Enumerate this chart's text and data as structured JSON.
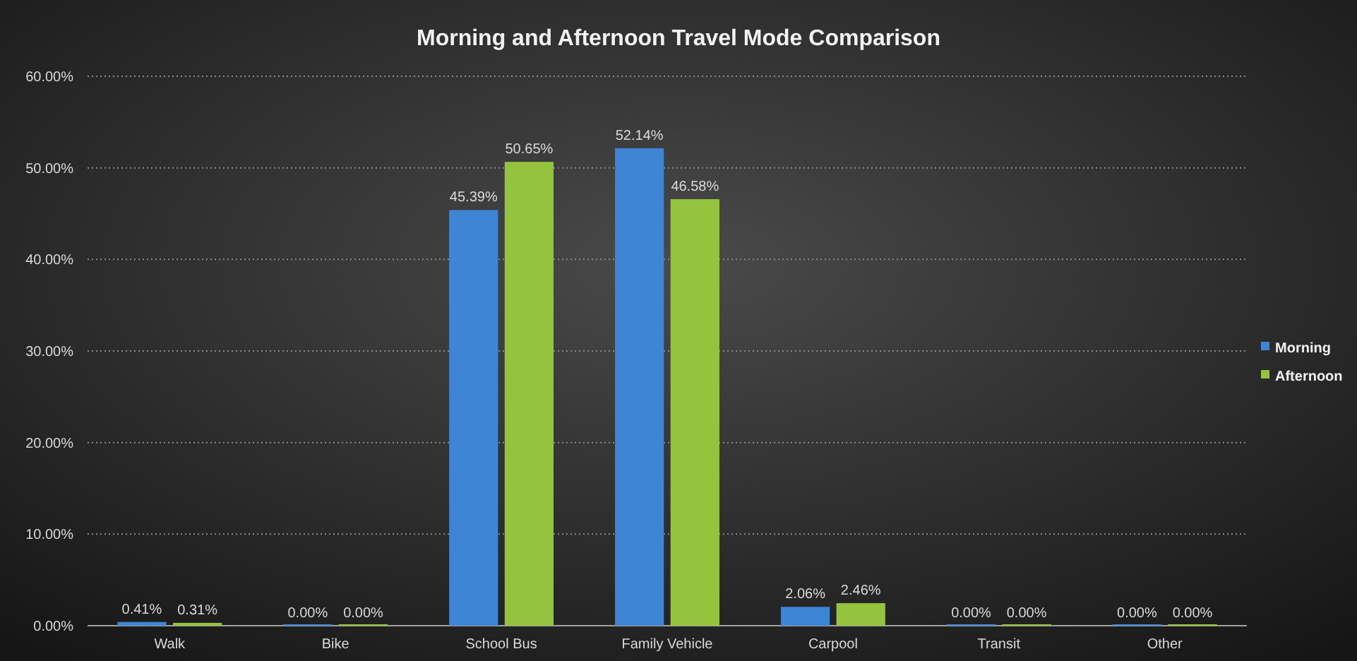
{
  "chart_data": {
    "type": "bar",
    "title": "Morning and Afternoon Travel Mode Comparison",
    "categories": [
      "Walk",
      "Bike",
      "School Bus",
      "Family Vehicle",
      "Carpool",
      "Transit",
      "Other"
    ],
    "series": [
      {
        "name": "Morning",
        "color": "#3e85d6",
        "values": [
          0.41,
          0,
          45.39,
          52.14,
          2.06,
          0,
          0
        ],
        "value_labels": [
          "0.41%",
          "0.00%",
          "45.39%",
          "52.14%",
          "2.06%",
          "0.00%",
          "0.00%"
        ]
      },
      {
        "name": "Afternoon",
        "color": "#94c43e",
        "values": [
          0.31,
          0,
          50.65,
          46.58,
          2.46,
          0,
          0
        ],
        "value_labels": [
          "0.31%",
          "0.00%",
          "50.65%",
          "46.58%",
          "2.46%",
          "0.00%",
          "0.00%"
        ]
      }
    ],
    "ylim": [
      0,
      60
    ],
    "yticks": [
      {
        "value": 0,
        "label": "0.00%"
      },
      {
        "value": 10,
        "label": "10.00%"
      },
      {
        "value": 20,
        "label": "20.00%"
      },
      {
        "value": 30,
        "label": "30.00%"
      },
      {
        "value": 40,
        "label": "40.00%"
      },
      {
        "value": 50,
        "label": "50.00%"
      },
      {
        "value": 60,
        "label": "60.00%"
      }
    ],
    "grid": "y",
    "legend": "right"
  }
}
